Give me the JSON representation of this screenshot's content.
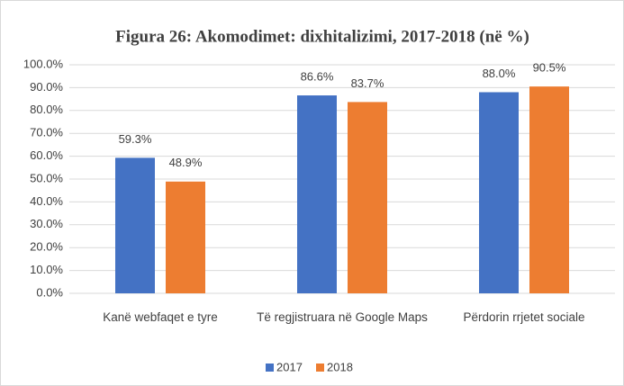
{
  "chart_data": {
    "type": "bar",
    "title": "Figura 26: Akomodimet: dixhitalizimi, 2017-2018 (në %)",
    "categories": [
      "Kanë webfaqet e tyre",
      "Të regjistruara në Google Maps",
      "Përdorin rrjetet sociale"
    ],
    "series": [
      {
        "name": "2017",
        "color": "#4472c4",
        "values": [
          59.3,
          86.6,
          88.0
        ],
        "value_labels": [
          "59.3%",
          "86.6%",
          "88.0%"
        ]
      },
      {
        "name": "2018",
        "color": "#ed7d31",
        "values": [
          48.9,
          83.7,
          90.5
        ],
        "value_labels": [
          "48.9%",
          "83.7%",
          "90.5%"
        ]
      }
    ],
    "ylim": [
      0,
      100
    ],
    "yticks": [
      {
        "value": 0,
        "label": "0.0%"
      },
      {
        "value": 10,
        "label": "10.0%"
      },
      {
        "value": 20,
        "label": "20.0%"
      },
      {
        "value": 30,
        "label": "30.0%"
      },
      {
        "value": 40,
        "label": "40.0%"
      },
      {
        "value": 50,
        "label": "50.0%"
      },
      {
        "value": 60,
        "label": "60.0%"
      },
      {
        "value": 70,
        "label": "70.0%"
      },
      {
        "value": 80,
        "label": "80.0%"
      },
      {
        "value": 90,
        "label": "90.0%"
      },
      {
        "value": 100,
        "label": "100.0%"
      }
    ],
    "grid": true,
    "legend": "bottom"
  }
}
